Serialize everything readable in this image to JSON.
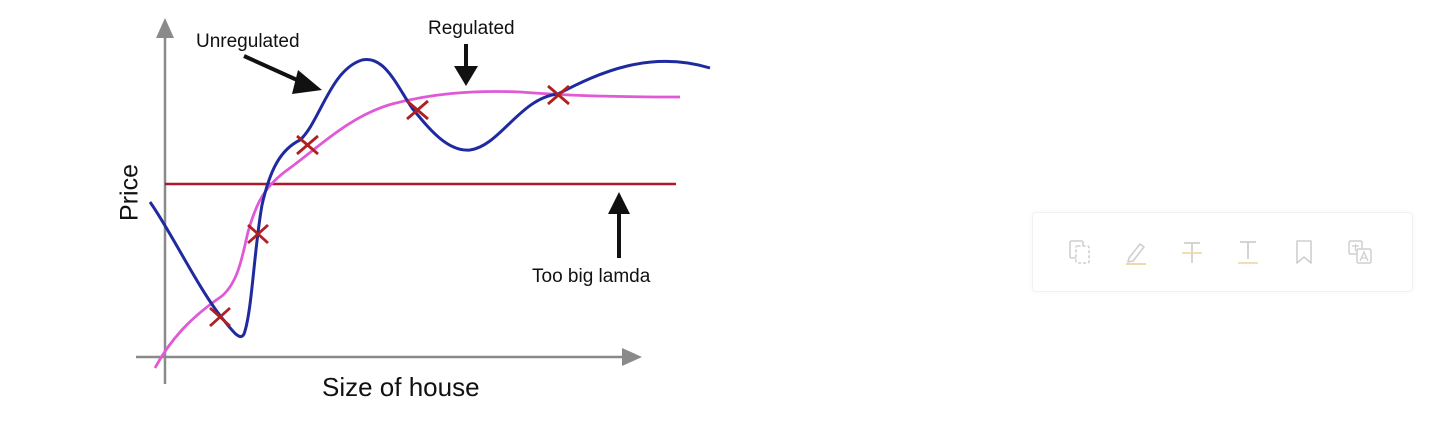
{
  "diagram": {
    "annotations": {
      "unregulated": "Unregulated",
      "regulated": "Regulated",
      "too_big_lambda": "Too big lamda"
    },
    "axes": {
      "x_label": "Size of house",
      "y_label": "Price"
    },
    "colors": {
      "unregulated_curve": "#1f2a9e",
      "regulated_curve": "#e05ad8",
      "lambda_line": "#b0162a",
      "data_points": "#b02020",
      "axes": "#8a8a8a",
      "arrows": "#111111"
    }
  },
  "toolbar": {
    "items": [
      {
        "icon": "copy-icon"
      },
      {
        "icon": "highlight-icon"
      },
      {
        "icon": "strikethrough-icon"
      },
      {
        "icon": "underline-icon"
      },
      {
        "icon": "bookmark-icon"
      },
      {
        "icon": "translate-icon"
      }
    ]
  }
}
